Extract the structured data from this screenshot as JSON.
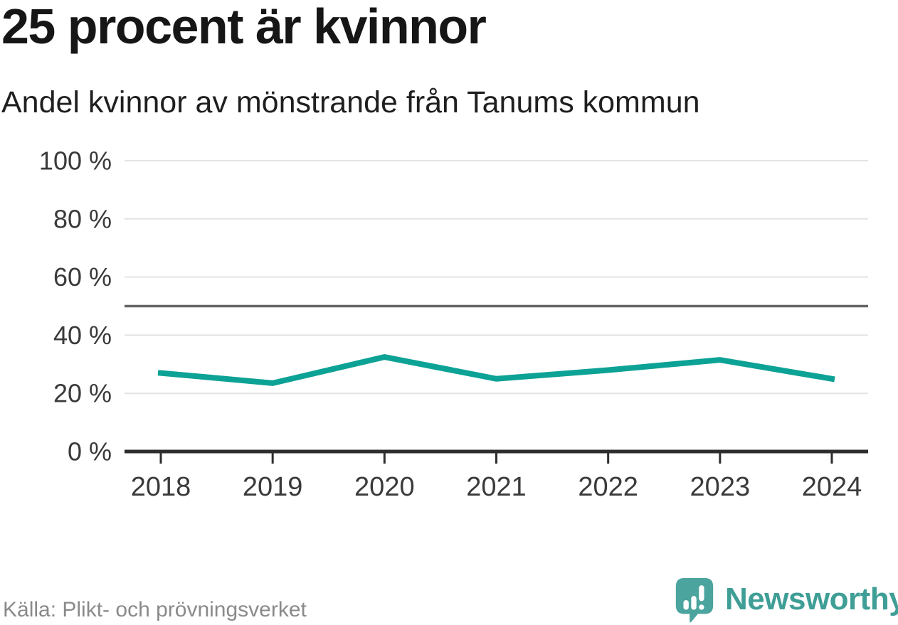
{
  "chart_data": {
    "type": "line",
    "title": "25 procent är kvinnor",
    "subtitle": "Andel kvinnor av mönstrande från Tanums kommun",
    "x": [
      "2018",
      "2019",
      "2020",
      "2021",
      "2022",
      "2023",
      "2024"
    ],
    "series": [
      {
        "name": "Andel kvinnor av mönstrande",
        "values": [
          27,
          23.5,
          32.5,
          25,
          28,
          31.5,
          25
        ]
      }
    ],
    "unit": "%",
    "ylim": [
      0,
      100
    ],
    "yticks": [
      0,
      20,
      40,
      60,
      80,
      100
    ],
    "ytick_suffix": " %",
    "reference_line": 50,
    "grid": true,
    "legend": "none",
    "colors": {
      "line": "#0ca295",
      "reference": "#666666",
      "grid": "#e3e3e3",
      "axis": "#2d2d2d",
      "labels": "#3a3a3a"
    }
  },
  "footer": {
    "source": "Källa: Plikt- och prövningsverket",
    "brand": "Newsworthy",
    "brand_text_color": "#3f9e96",
    "brand_icon_color": "#4ba49d",
    "logo_icon": "newsworthy-speech-bubble-bar-chart-icon"
  }
}
